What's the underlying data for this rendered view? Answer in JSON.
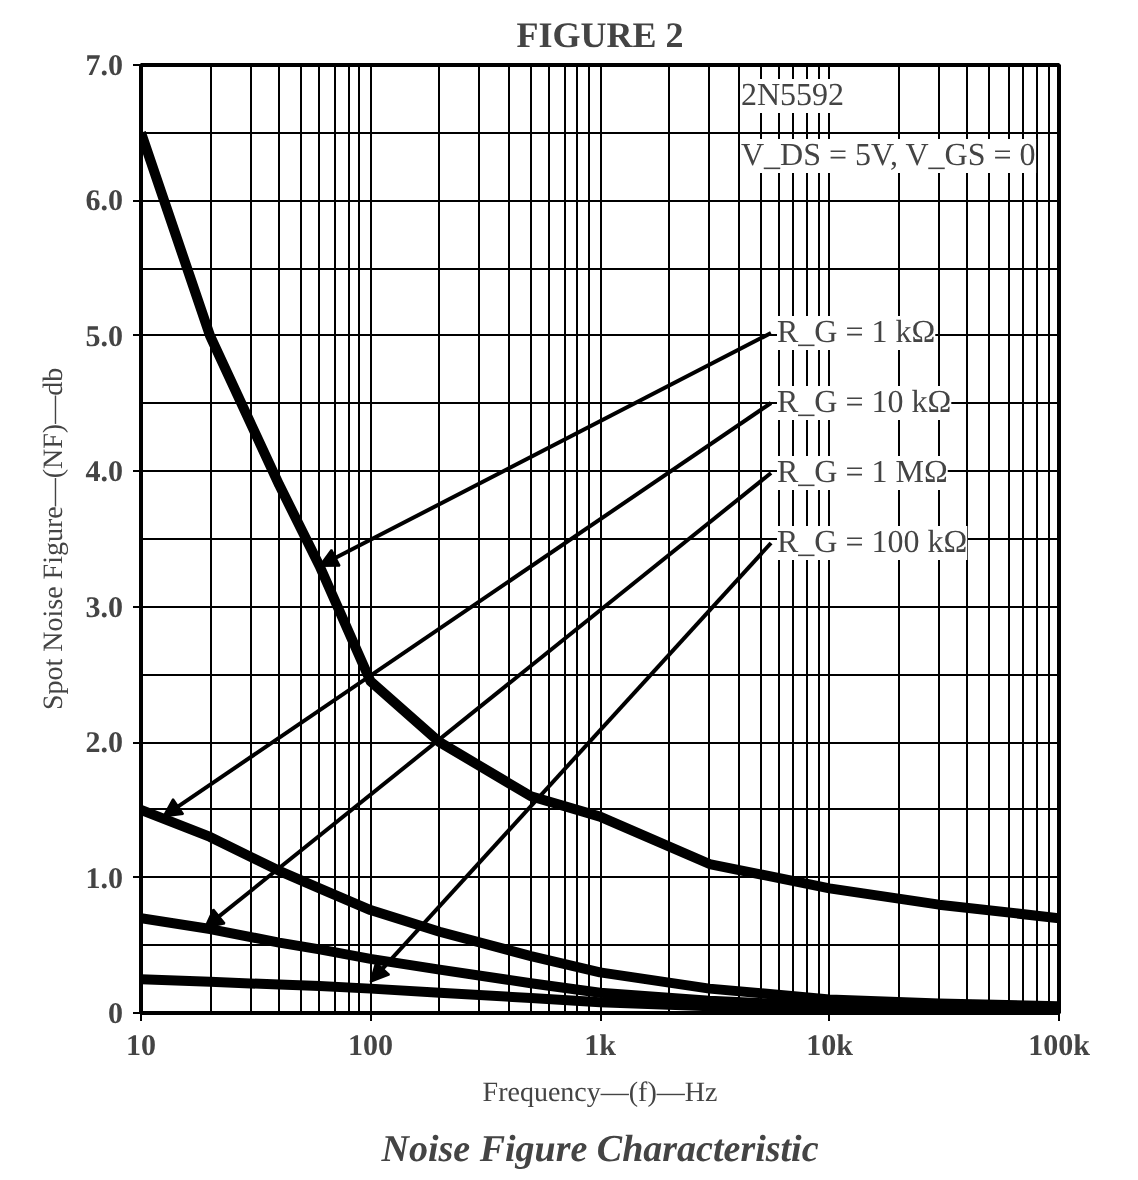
{
  "chart_data": {
    "type": "line",
    "title": "FIGURE 2",
    "xlabel": "Frequency—(f)—Hz",
    "ylabel": "Spot Noise Figure—(NF)—db",
    "log": "x",
    "grid": true,
    "line_style": "solid",
    "marker": "none",
    "xlim": [
      10,
      100000
    ],
    "ylim": [
      0,
      7
    ],
    "xticks": [
      {
        "value": 10,
        "label": "10"
      },
      {
        "value": 100,
        "label": "100"
      },
      {
        "value": 1000,
        "label": "1k"
      },
      {
        "value": 10000,
        "label": "10k"
      },
      {
        "value": 100000,
        "label": "100k"
      }
    ],
    "yticks": [
      {
        "value": 0,
        "label": "0"
      },
      {
        "value": 1,
        "label": "1.0"
      },
      {
        "value": 2,
        "label": "2.0"
      },
      {
        "value": 3,
        "label": "3.0"
      },
      {
        "value": 4,
        "label": "4.0"
      },
      {
        "value": 5,
        "label": "5.0"
      },
      {
        "value": 6,
        "label": "6.0"
      },
      {
        "value": 7,
        "label": "7.0"
      }
    ],
    "x": [
      10,
      20,
      40,
      60,
      100,
      200,
      500,
      1000,
      3000,
      10000,
      30000,
      100000
    ],
    "series": [
      {
        "color": "#000000",
        "values": [
          6.5,
          5.0,
          3.9,
          3.3,
          2.45,
          2.0,
          1.6,
          1.45,
          1.1,
          0.92,
          0.8,
          0.7
        ]
      },
      {
        "color": "#000000",
        "values": [
          1.5,
          1.3,
          1.05,
          0.92,
          0.76,
          0.6,
          0.42,
          0.3,
          0.18,
          0.1,
          0.07,
          0.05
        ]
      },
      {
        "color": "#000000",
        "values": [
          0.7,
          0.62,
          0.52,
          0.47,
          0.4,
          0.32,
          0.22,
          0.15,
          0.09,
          0.05,
          0.04,
          0.03
        ]
      },
      {
        "color": "#000000",
        "values": [
          0.25,
          0.23,
          0.21,
          0.2,
          0.18,
          0.15,
          0.11,
          0.08,
          0.05,
          0.03,
          0.03,
          0.02
        ]
      }
    ],
    "annotations": [
      "2N5592",
      "V_DS = 5V, V_GS = 0",
      {
        "text": "R_G = 1 kΩ",
        "x": 60,
        "y": 3.3
      },
      {
        "text": "R_G = 10 kΩ",
        "x": 12.5,
        "y": 1.45
      },
      {
        "text": "R_G = 1 MΩ",
        "x": 19,
        "y": 0.63
      },
      {
        "text": "R_G = 100 kΩ",
        "x": 100,
        "y": 0.23
      },
      "Noise Figure Characteristic"
    ]
  }
}
